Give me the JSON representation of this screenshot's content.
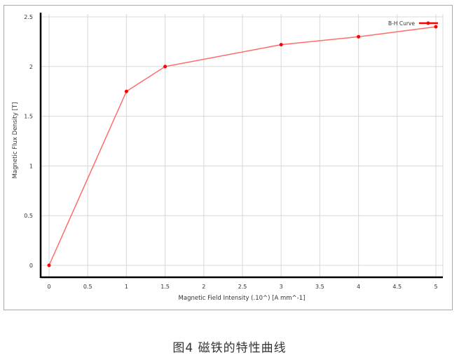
{
  "chart_data": {
    "type": "line",
    "xlabel": "Magnetic Field Intensity  (.10^)  [A mm^-1]",
    "ylabel": "Magnetic Flux Density  [T]",
    "xlim": [
      0,
      5
    ],
    "ylim": [
      0,
      2.5
    ],
    "xticks": [
      "0",
      "0.5",
      "1",
      "1.5",
      "2",
      "2.5",
      "3",
      "3.5",
      "4",
      "4.5",
      "5"
    ],
    "yticks": [
      "0",
      "0.5",
      "1",
      "1.5",
      "2",
      "2.5"
    ],
    "grid": true,
    "legend_position": "top-right",
    "series": [
      {
        "name": "B-H Curve",
        "color": "#ff0000",
        "x": [
          0,
          1,
          1.5,
          3,
          4,
          5
        ],
        "y": [
          0,
          1.75,
          2,
          2.22,
          2.3,
          2.4
        ]
      }
    ]
  },
  "caption": "图4  磁铁的特性曲线"
}
